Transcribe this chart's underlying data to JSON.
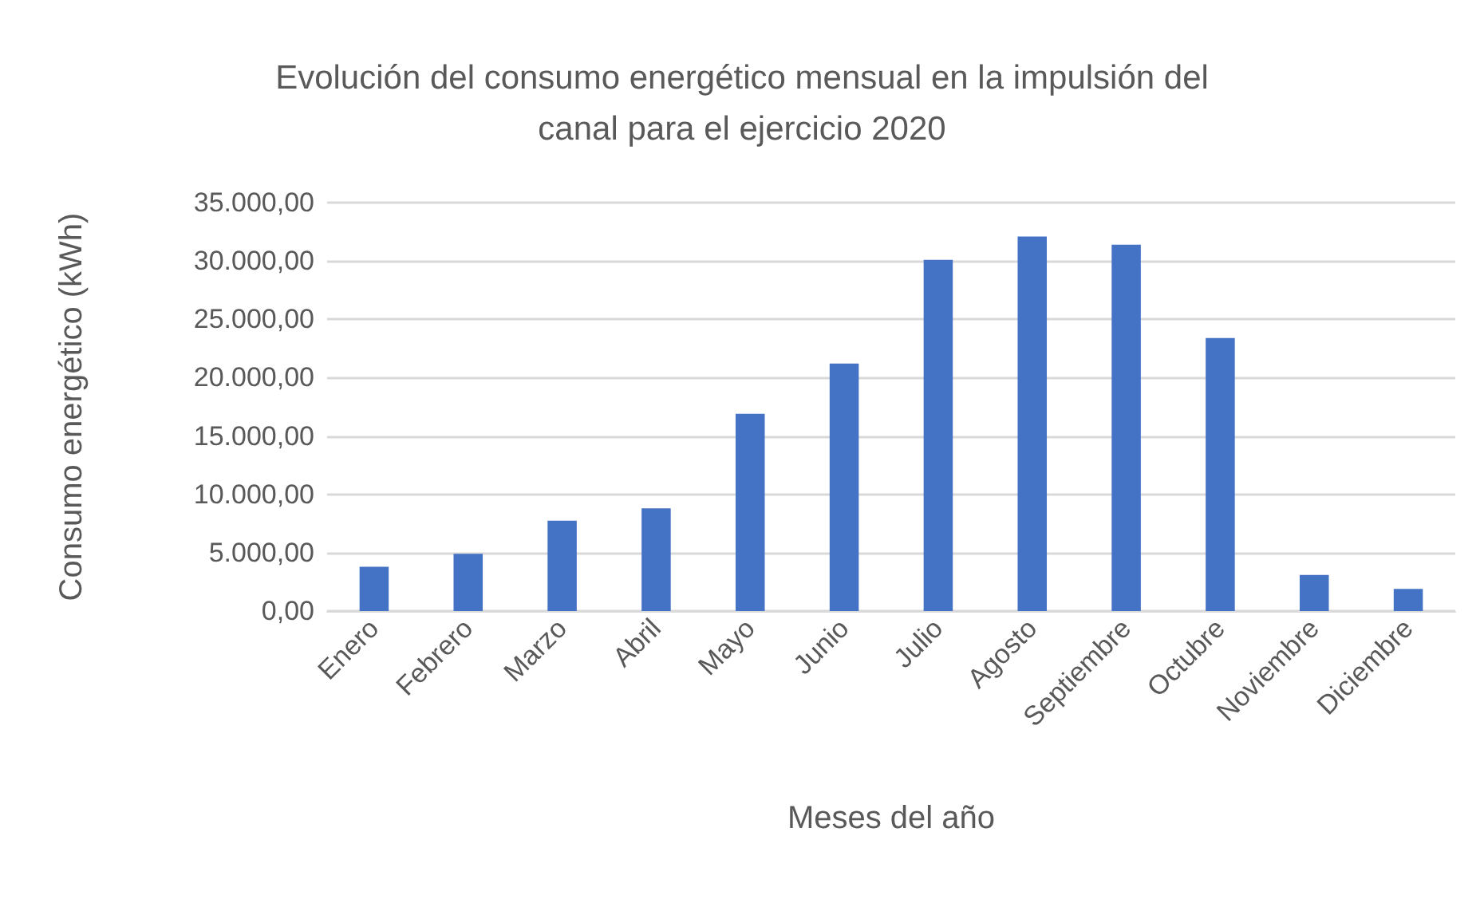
{
  "chart_data": {
    "type": "bar",
    "title": "Evolución del consumo energético mensual en la impulsión del\ncanal para el ejercicio 2020",
    "xlabel": "Meses del año",
    "ylabel": "Consumo energético (kWh)",
    "categories": [
      "Enero",
      "Febrero",
      "Marzo",
      "Abril",
      "Mayo",
      "Junio",
      "Julio",
      "Agosto",
      "Septiembre",
      "Octubre",
      "Noviembre",
      "Diciembre"
    ],
    "values": [
      3800,
      4900,
      7750,
      8800,
      16900,
      21200,
      30100,
      32100,
      31400,
      23400,
      3100,
      1900
    ],
    "color": "#4472c4",
    "ylim": [
      0,
      35000
    ],
    "yticks": [
      {
        "value": 0,
        "label": "0,00"
      },
      {
        "value": 5000,
        "label": "5.000,00"
      },
      {
        "value": 10000,
        "label": "10.000,00"
      },
      {
        "value": 15000,
        "label": "15.000,00"
      },
      {
        "value": 20000,
        "label": "20.000,00"
      },
      {
        "value": 25000,
        "label": "25.000,00"
      },
      {
        "value": 30000,
        "label": "30.000,00"
      },
      {
        "value": 35000,
        "label": "35.000,00"
      }
    ],
    "grid": "y"
  }
}
